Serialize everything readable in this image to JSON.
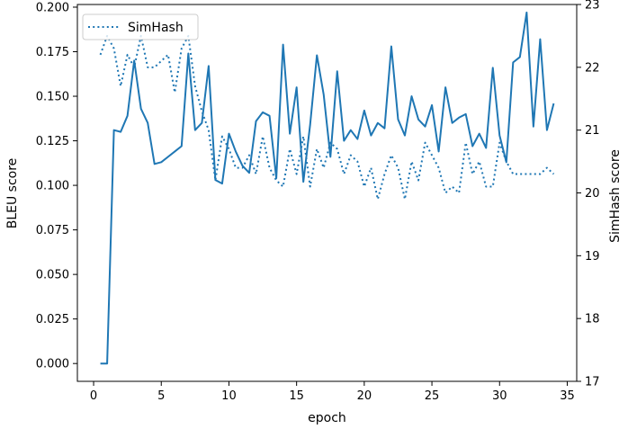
{
  "chart_data": {
    "type": "line",
    "xlabel": "epoch",
    "ylabel": "BLEU score",
    "ylabel_right": "SimHash score",
    "xlim": [
      -1.2,
      35.7
    ],
    "ylim": [
      -0.01,
      0.2015
    ],
    "ylim_right": [
      17,
      23
    ],
    "x_ticks": [
      0,
      5,
      10,
      15,
      20,
      25,
      30,
      35
    ],
    "y_ticks": [
      0.0,
      0.025,
      0.05,
      0.075,
      0.1,
      0.125,
      0.15,
      0.175,
      0.2
    ],
    "y_tick_labels": [
      "0.000",
      "0.025",
      "0.050",
      "0.075",
      "0.100",
      "0.125",
      "0.150",
      "0.175",
      "0.200"
    ],
    "y_ticks_right": [
      17,
      18,
      19,
      20,
      21,
      22,
      23
    ],
    "grid": false,
    "legend_position": "top-left",
    "color": "#1f77b4",
    "series": [
      {
        "axis": "left",
        "style": "solid",
        "x": [
          0.5,
          1.0,
          1.5,
          2.0,
          2.5,
          3.0,
          3.5,
          4.0,
          4.5,
          5.0,
          5.5,
          6.0,
          6.5,
          7.0,
          7.5,
          8.0,
          8.5,
          9.0,
          9.5,
          10.0,
          10.5,
          11.0,
          11.5,
          12.0,
          12.5,
          13.0,
          13.5,
          14.0,
          14.5,
          15.0,
          15.5,
          16.0,
          16.5,
          17.0,
          17.5,
          18.0,
          18.5,
          19.0,
          19.5,
          20.0,
          20.5,
          21.0,
          21.5,
          22.0,
          22.5,
          23.0,
          23.5,
          24.0,
          24.5,
          25.0,
          25.5,
          26.0,
          26.5,
          27.0,
          27.5,
          28.0,
          28.5,
          29.0,
          29.5,
          30.0,
          30.5,
          31.0,
          31.5,
          32.0,
          32.5,
          33.0,
          33.5,
          34.0
        ],
        "values": [
          0.0,
          0.0,
          0.131,
          0.13,
          0.139,
          0.17,
          0.143,
          0.135,
          0.112,
          0.113,
          0.116,
          0.119,
          0.122,
          0.174,
          0.131,
          0.135,
          0.167,
          0.103,
          0.101,
          0.129,
          0.119,
          0.111,
          0.107,
          0.136,
          0.141,
          0.139,
          0.104,
          0.179,
          0.129,
          0.155,
          0.102,
          0.134,
          0.173,
          0.151,
          0.116,
          0.164,
          0.125,
          0.131,
          0.126,
          0.142,
          0.128,
          0.135,
          0.132,
          0.178,
          0.137,
          0.128,
          0.15,
          0.137,
          0.133,
          0.145,
          0.119,
          0.155,
          0.135,
          0.138,
          0.14,
          0.122,
          0.129,
          0.121,
          0.166,
          0.128,
          0.113,
          0.169,
          0.172,
          0.197,
          0.133,
          0.182,
          0.131,
          0.146
        ]
      },
      {
        "name": "SimHash",
        "axis": "right",
        "style": "dotted",
        "x": [
          0.5,
          1.0,
          1.5,
          2.0,
          2.5,
          3.0,
          3.5,
          4.0,
          4.5,
          5.0,
          5.5,
          6.0,
          6.5,
          7.0,
          7.5,
          8.0,
          8.5,
          9.0,
          9.5,
          10.0,
          10.5,
          11.0,
          11.5,
          12.0,
          12.5,
          13.0,
          13.5,
          14.0,
          14.5,
          15.0,
          15.5,
          16.0,
          16.5,
          17.0,
          17.5,
          18.0,
          18.5,
          19.0,
          19.5,
          20.0,
          20.5,
          21.0,
          21.5,
          22.0,
          22.5,
          23.0,
          23.5,
          24.0,
          24.5,
          25.0,
          25.5,
          26.0,
          26.5,
          27.0,
          27.5,
          28.0,
          28.5,
          29.0,
          29.5,
          30.0,
          30.5,
          31.0,
          31.5,
          32.0,
          32.5,
          33.0,
          33.5,
          34.0
        ],
        "values": [
          22.2,
          22.5,
          22.3,
          21.7,
          22.2,
          22.0,
          22.5,
          22.0,
          22.0,
          22.1,
          22.2,
          21.6,
          22.3,
          22.5,
          21.7,
          21.3,
          21.0,
          20.2,
          20.9,
          20.7,
          20.4,
          20.4,
          20.6,
          20.3,
          20.9,
          20.4,
          20.2,
          20.1,
          20.7,
          20.3,
          20.9,
          20.1,
          20.7,
          20.4,
          20.8,
          20.7,
          20.3,
          20.6,
          20.5,
          20.1,
          20.4,
          19.9,
          20.3,
          20.6,
          20.4,
          19.9,
          20.5,
          20.2,
          20.8,
          20.6,
          20.4,
          20.0,
          20.1,
          20.0,
          20.8,
          20.3,
          20.5,
          20.1,
          20.1,
          20.8,
          20.5,
          20.3,
          20.3,
          20.3,
          20.3,
          20.3,
          20.4,
          20.3
        ]
      }
    ]
  }
}
